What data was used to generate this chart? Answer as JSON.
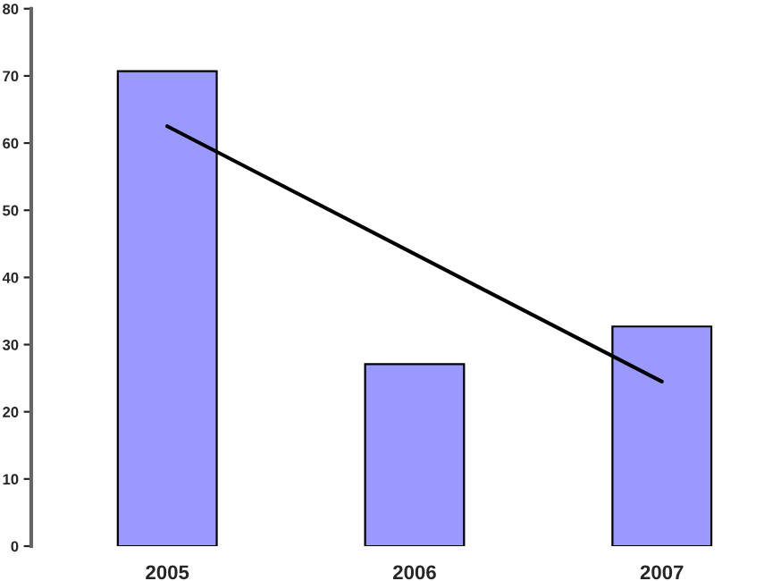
{
  "chart_data": {
    "type": "bar",
    "categories": [
      "2005",
      "2006",
      "2007"
    ],
    "series": [
      {
        "color": "#9999ff",
        "values": [
          70.7,
          27.1,
          32.7
        ]
      },
      {
        "type": "line",
        "color": "#000000",
        "values": [
          62.5,
          43.5,
          24.5
        ]
      }
    ],
    "ylim": [
      0,
      80
    ],
    "yticks": [
      0,
      10,
      20,
      30,
      40,
      50,
      60,
      70,
      80
    ],
    "grid": false,
    "legend": false
  }
}
